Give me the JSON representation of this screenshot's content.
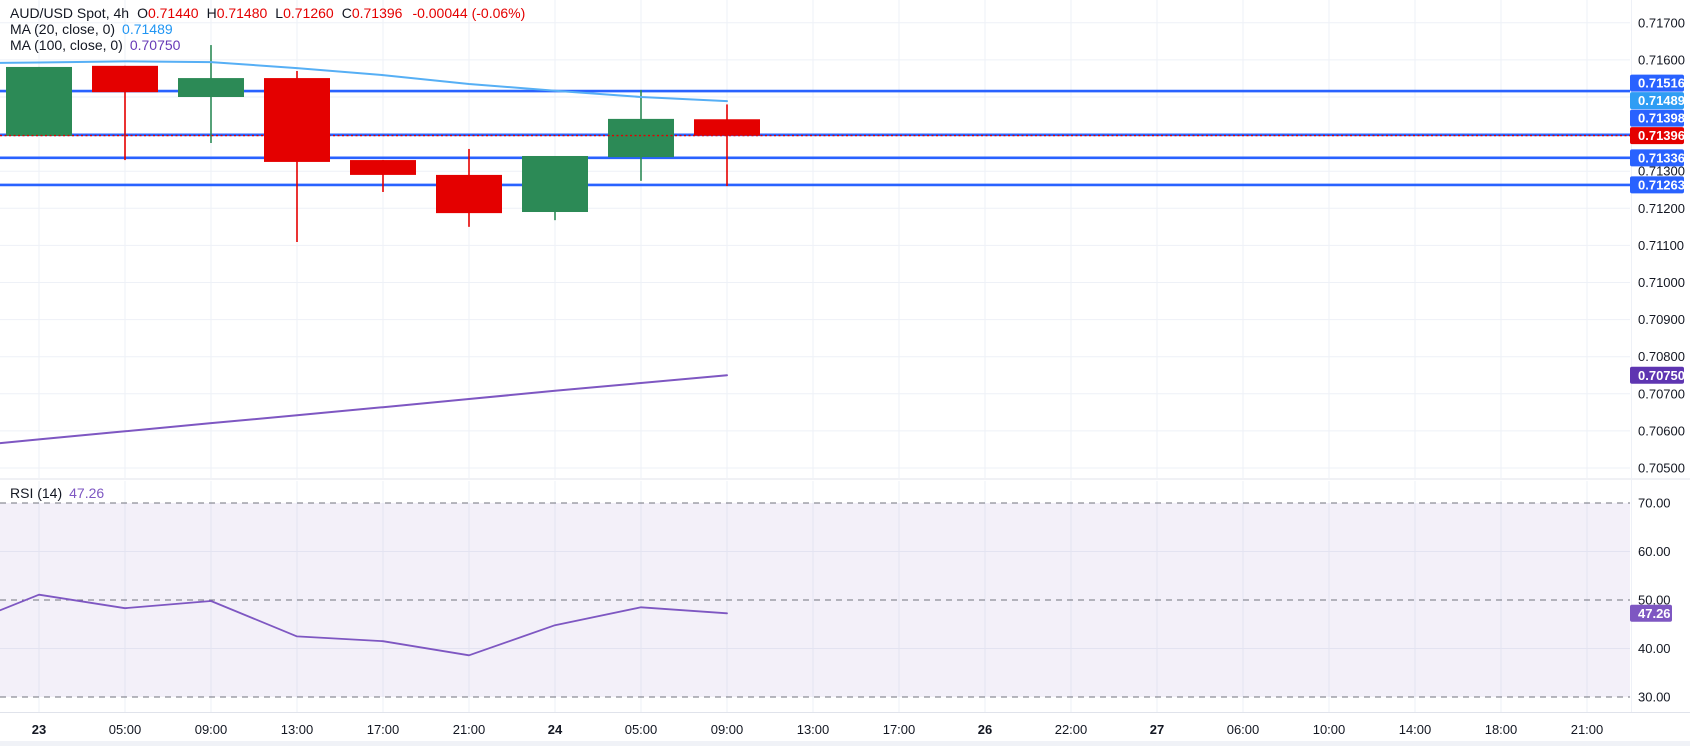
{
  "legend": {
    "title": "AUD/USD Spot, 4h",
    "o_label": "O",
    "o": "0.71440",
    "h_label": "H",
    "h": "0.71480",
    "l_label": "L",
    "l": "0.71260",
    "c_label": "C",
    "c": "0.71396",
    "change": "-0.00044 (-0.06%)",
    "ma20_label": "MA (20, close, 0)",
    "ma20_value": "0.71489",
    "ma100_label": "MA (100, close, 0)",
    "ma100_value": "0.70750",
    "rsi_label": "RSI (14)",
    "rsi_value": "47.26"
  },
  "colors": {
    "up": "#2c8a56",
    "down": "#e40000",
    "blue": "#2962ff",
    "ma20_badge": "#2f9df4",
    "ma20_line": "#56aff5",
    "ma20_text": "#2196f3",
    "ma100_badge": "#5e35b1",
    "ma100_line": "#7e57c2",
    "ma100_text": "#673ab7",
    "rsi": "#7e57c2",
    "text": "#131722",
    "grid": "#eef1f7",
    "band": "rgba(126,87,194,0.09)",
    "dashed": "#70737d",
    "separator": "#e0e3eb"
  },
  "chart_data": {
    "type": "candlestick",
    "symbol": "AUD/USD Spot",
    "interval": "4h",
    "panes": [
      "price",
      "rsi"
    ],
    "candles": [
      {
        "time": "23 01:00",
        "o": 0.71395,
        "h": 0.71581,
        "l": 0.71395,
        "c": 0.71581
      },
      {
        "time": "23 05:00",
        "o": 0.71584,
        "h": 0.71584,
        "l": 0.7133,
        "c": 0.71513
      },
      {
        "time": "23 09:00",
        "o": 0.715,
        "h": 0.7164,
        "l": 0.71376,
        "c": 0.71551
      },
      {
        "time": "23 13:00",
        "o": 0.71551,
        "h": 0.7157,
        "l": 0.71109,
        "c": 0.71325
      },
      {
        "time": "23 17:00",
        "o": 0.7133,
        "h": 0.7133,
        "l": 0.71244,
        "c": 0.7129
      },
      {
        "time": "23 21:00",
        "o": 0.7129,
        "h": 0.7136,
        "l": 0.7115,
        "c": 0.71187
      },
      {
        "time": "24 01:00",
        "o": 0.7119,
        "h": 0.71341,
        "l": 0.71168,
        "c": 0.71341
      },
      {
        "time": "24 05:00",
        "o": 0.71338,
        "h": 0.71519,
        "l": 0.71274,
        "c": 0.71441
      },
      {
        "time": "24 09:00",
        "o": 0.7144,
        "h": 0.7148,
        "l": 0.7126,
        "c": 0.71396
      }
    ],
    "hlines": [
      0.71516,
      0.71398,
      0.71336,
      0.71263
    ],
    "current_price": 0.71396,
    "ma20": {
      "period": 20,
      "points": [
        [
          -0.45,
          0.71592
        ],
        [
          0,
          0.71593
        ],
        [
          1,
          0.71596
        ],
        [
          2,
          0.71594
        ],
        [
          3,
          0.71578
        ],
        [
          4,
          0.71559
        ],
        [
          5,
          0.71535
        ],
        [
          6,
          0.71517
        ],
        [
          7,
          0.715
        ],
        [
          8,
          0.71489
        ]
      ]
    },
    "ma100": {
      "period": 100,
      "points": [
        [
          -0.45,
          0.70567
        ],
        [
          0,
          0.70577
        ],
        [
          1,
          0.70599
        ],
        [
          2,
          0.70621
        ],
        [
          3,
          0.70642
        ],
        [
          4,
          0.70664
        ],
        [
          5,
          0.70686
        ],
        [
          6,
          0.70708
        ],
        [
          7,
          0.70729
        ],
        [
          8,
          0.7075
        ]
      ]
    },
    "rsi": {
      "period": 14,
      "points": [
        [
          -0.45,
          47.9
        ],
        [
          0,
          51.1
        ],
        [
          1,
          48.3
        ],
        [
          2,
          49.8
        ],
        [
          3,
          42.5
        ],
        [
          4,
          41.5
        ],
        [
          5,
          38.6
        ],
        [
          6,
          44.8
        ],
        [
          7,
          48.5
        ],
        [
          8,
          47.26
        ]
      ],
      "dashed_levels": [
        70,
        50,
        30
      ],
      "solid_grid": [
        60,
        40
      ],
      "band": [
        30,
        70
      ],
      "axis_ticks": [
        70,
        60,
        50,
        40,
        30
      ]
    },
    "price_axis": {
      "ticks": [
        0.717,
        0.716,
        0.713,
        0.712,
        0.711,
        0.71,
        0.709,
        0.708,
        0.707,
        0.706,
        0.705
      ],
      "grid_min": 0.705,
      "grid_max": 0.717,
      "grid_step": 0.001
    },
    "badges": [
      {
        "price": 0.71516,
        "color": "blue"
      },
      {
        "price": 0.71489,
        "color": "ma20_badge"
      },
      {
        "price": 0.71398,
        "color": "blue"
      },
      {
        "price": 0.71396,
        "color": "down"
      },
      {
        "price": 0.71336,
        "color": "blue"
      },
      {
        "price": 0.71263,
        "color": "blue"
      },
      {
        "price": 0.7075,
        "color": "ma100_badge"
      }
    ],
    "rsi_badge": {
      "value": 47.26,
      "color": "rsi"
    },
    "time_axis": [
      {
        "label": "23",
        "bold": true
      },
      {
        "label": "05:00"
      },
      {
        "label": "09:00"
      },
      {
        "label": "13:00"
      },
      {
        "label": "17:00"
      },
      {
        "label": "21:00"
      },
      {
        "label": "24",
        "bold": true
      },
      {
        "label": "05:00"
      },
      {
        "label": "09:00"
      },
      {
        "label": "13:00"
      },
      {
        "label": "17:00"
      },
      {
        "label": "26",
        "bold": true
      },
      {
        "label": "22:00"
      },
      {
        "label": "27",
        "bold": true
      },
      {
        "label": "06:00"
      },
      {
        "label": "10:00"
      },
      {
        "label": "14:00"
      },
      {
        "label": "18:00"
      },
      {
        "label": "21:00"
      }
    ]
  }
}
